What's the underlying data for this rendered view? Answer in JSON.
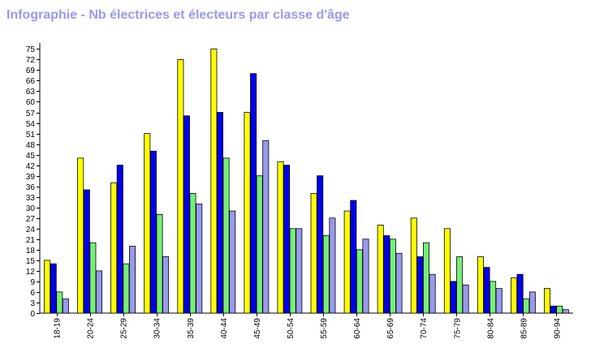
{
  "page": {
    "title": "Infographie - Nb électrices et électeurs par classe d'âge"
  },
  "chart_data": {
    "type": "bar",
    "title": "Infographie - Nb électrices et électeurs par classe d'âge",
    "xlabel": "",
    "ylabel": "",
    "ylim": [
      0,
      76
    ],
    "yticks": [
      "0",
      "3",
      "6",
      "9",
      "12",
      "15",
      "18",
      "21",
      "24",
      "27",
      "30",
      "33",
      "36",
      "39",
      "42",
      "45",
      "48",
      "51",
      "54",
      "57",
      "60",
      "63",
      "66",
      "69",
      "72",
      "75"
    ],
    "grid": false,
    "legend": "none",
    "categories": [
      "18-19",
      "20-24",
      "25-29",
      "30-34",
      "35-39",
      "40-44",
      "45-49",
      "50-54",
      "55-59",
      "60-64",
      "65-69",
      "70-74",
      "75-79",
      "80-84",
      "85-89",
      "90-94"
    ],
    "series": [
      {
        "color": "#ffff00",
        "values": [
          15,
          44,
          37,
          51,
          72,
          75,
          57,
          43,
          34,
          29,
          25,
          27,
          24,
          16,
          10,
          7
        ]
      },
      {
        "color": "#0000ee",
        "values": [
          14,
          35,
          42,
          46,
          56,
          57,
          68,
          42,
          39,
          32,
          22,
          16,
          9,
          13,
          11,
          2
        ]
      },
      {
        "color": "#77ee77",
        "values": [
          6,
          20,
          14,
          28,
          34,
          44,
          39,
          24,
          22,
          18,
          21,
          20,
          16,
          9,
          4,
          2
        ]
      },
      {
        "color": "#9999ee",
        "values": [
          4,
          12,
          19,
          16,
          31,
          29,
          49,
          24,
          27,
          21,
          17,
          11,
          8,
          7,
          6,
          1
        ]
      }
    ]
  }
}
